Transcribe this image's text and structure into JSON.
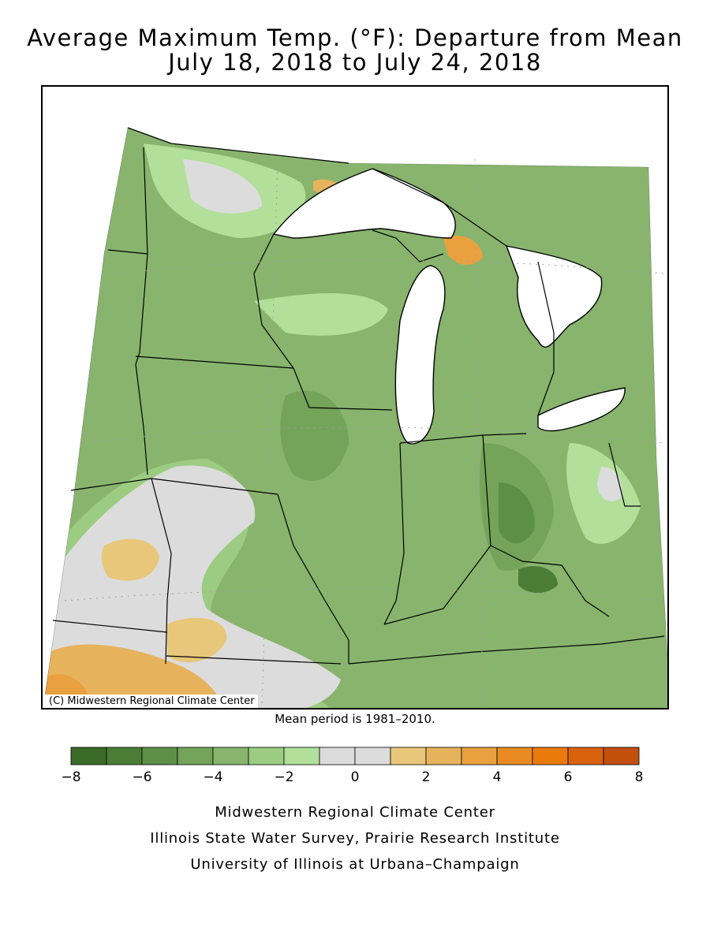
{
  "title_line1": "Average Maximum Temp. (°F): Departure from Mean",
  "title_line2": "July 18, 2018 to July 24, 2018",
  "credit": "(C) Midwestern Regional Climate Center",
  "mean_note": "Mean period is 1981–2010.",
  "legend": {
    "colors": [
      "#3a6b27",
      "#4c7d37",
      "#5e8f47",
      "#74a35a",
      "#88b46d",
      "#9ccc82",
      "#b2df9a",
      "#dcdcdc",
      "#dcdcdc",
      "#e8c77a",
      "#e6b25c",
      "#e8a13e",
      "#e98b22",
      "#ea7a0c",
      "#d8620b",
      "#c2500a"
    ],
    "tick_labels": [
      "−8",
      "−6",
      "−4",
      "−2",
      "0",
      "2",
      "4",
      "6",
      "8"
    ]
  },
  "footer": {
    "line1": "Midwestern Regional Climate Center",
    "line2": "Illinois State Water Survey, Prairie Research Institute",
    "line3": "University of Illinois at Urbana–Champaign"
  },
  "colors": {
    "neutral": "#dcdcdc",
    "lake": "#ffffff",
    "border": "#000000"
  }
}
